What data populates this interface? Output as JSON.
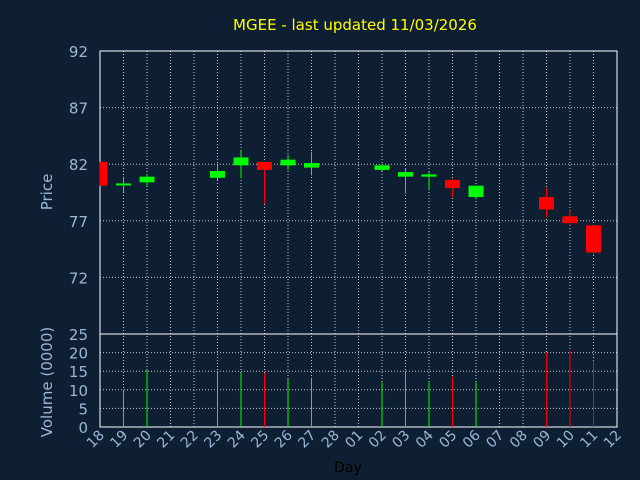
{
  "chart_data": {
    "type": "candlestick",
    "title": "MGEE - last updated 11/03/2026",
    "ylabel": "Price",
    "volume_label": "Volume (0000)",
    "xlabel": "Day",
    "ylim": [
      67,
      92
    ],
    "price_ticks": [
      "92",
      "87",
      "82",
      "77",
      "72"
    ],
    "volume_ylim": [
      0,
      25
    ],
    "volume_ticks": [
      "25",
      "20",
      "15",
      "10",
      "5",
      "0"
    ],
    "x_labels": [
      "18",
      "19",
      "20",
      "21",
      "22",
      "23",
      "24",
      "25",
      "26",
      "27",
      "28",
      "01",
      "02",
      "03",
      "04",
      "05",
      "06",
      "07",
      "08",
      "09",
      "10",
      "11",
      "12"
    ],
    "grid": true,
    "colors": {
      "up": "#00ff00",
      "down": "#ff0000",
      "background": "#0f1f33",
      "grid": "#c8c8c8",
      "title": "#ffff00",
      "axis_text": "#9ab7d8"
    },
    "candles": [
      {
        "day": "18",
        "open": 82.2,
        "high": 82.2,
        "low": 80.1,
        "close": 80.1,
        "volume": 0
      },
      {
        "day": "19",
        "open": 80.2,
        "high": 80.9,
        "low": 79.5,
        "close": 80.3,
        "volume": 10
      },
      {
        "day": "20",
        "open": 80.4,
        "high": 81.1,
        "low": 80.1,
        "close": 80.9,
        "volume": 15.5
      },
      {
        "day": "23",
        "open": 80.8,
        "high": 81.8,
        "low": 80.6,
        "close": 81.4,
        "volume": 14.5
      },
      {
        "day": "24",
        "open": 81.9,
        "high": 83.2,
        "low": 80.8,
        "close": 82.6,
        "volume": 14.5
      },
      {
        "day": "25",
        "open": 82.2,
        "high": 82.2,
        "low": 78.5,
        "close": 81.5,
        "volume": 14.5
      },
      {
        "day": "26",
        "open": 81.9,
        "high": 82.8,
        "low": 81.5,
        "close": 82.4,
        "volume": 13
      },
      {
        "day": "27",
        "open": 81.7,
        "high": 83.1,
        "low": 81.0,
        "close": 82.1,
        "volume": 13.2
      },
      {
        "day": "02",
        "open": 81.5,
        "high": 82.0,
        "low": 81.4,
        "close": 81.9,
        "volume": 12
      },
      {
        "day": "03",
        "open": 80.9,
        "high": 81.6,
        "low": 79.4,
        "close": 81.3,
        "volume": 15
      },
      {
        "day": "04",
        "open": 80.9,
        "high": 81.3,
        "low": 79.7,
        "close": 81.1,
        "volume": 12
      },
      {
        "day": "05",
        "open": 80.6,
        "high": 80.7,
        "low": 79.1,
        "close": 79.9,
        "volume": 13.5
      },
      {
        "day": "06",
        "open": 79.1,
        "high": 80.1,
        "low": 78.9,
        "close": 80.1,
        "volume": 12
      },
      {
        "day": "09",
        "open": 79.1,
        "high": 79.9,
        "low": 77.3,
        "close": 78.0,
        "volume": 20
      },
      {
        "day": "10",
        "open": 77.4,
        "high": 77.9,
        "low": 76.6,
        "close": 76.8,
        "volume": 20.5
      },
      {
        "day": "11",
        "open": 76.6,
        "high": 76.6,
        "low": 74.0,
        "close": 74.2,
        "volume": 17.8
      }
    ]
  }
}
